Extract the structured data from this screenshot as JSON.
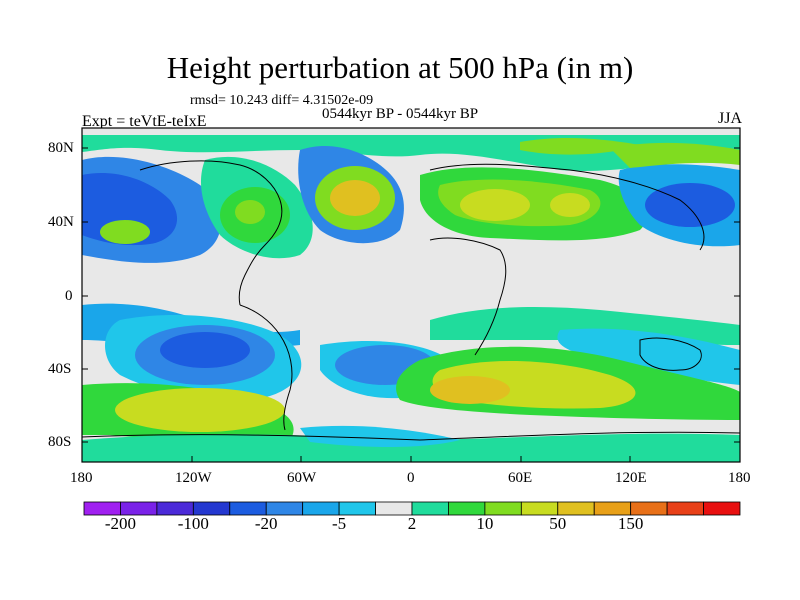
{
  "title": "Height perturbation at 500 hPa (in m)",
  "stats_line": "rmsd= 10.243 diff= 4.31502e-09",
  "experiment": "Expt = teVtE-teIxE",
  "period": "0544kyr BP - 0544kyr BP",
  "season": "JJA",
  "lat_ticks": [
    "80N",
    "40N",
    "0",
    "40S",
    "80S"
  ],
  "lon_ticks": [
    "180",
    "120W",
    "60W",
    "0",
    "60E",
    "120E",
    "180"
  ],
  "colorbar": {
    "colors": [
      "#a020f0",
      "#7a22e8",
      "#4b2ad8",
      "#2438d0",
      "#1c5ce0",
      "#2f86e6",
      "#1aa6ea",
      "#20c6ea",
      "#e8e8e8",
      "#20dc9c",
      "#30d83c",
      "#80dc20",
      "#c8dc20",
      "#e0c020",
      "#e8a018",
      "#e87018",
      "#e84018",
      "#e81010"
    ],
    "labels": [
      "-200",
      "-100",
      "-20",
      "-5",
      "2",
      "10",
      "50",
      "150"
    ]
  }
}
